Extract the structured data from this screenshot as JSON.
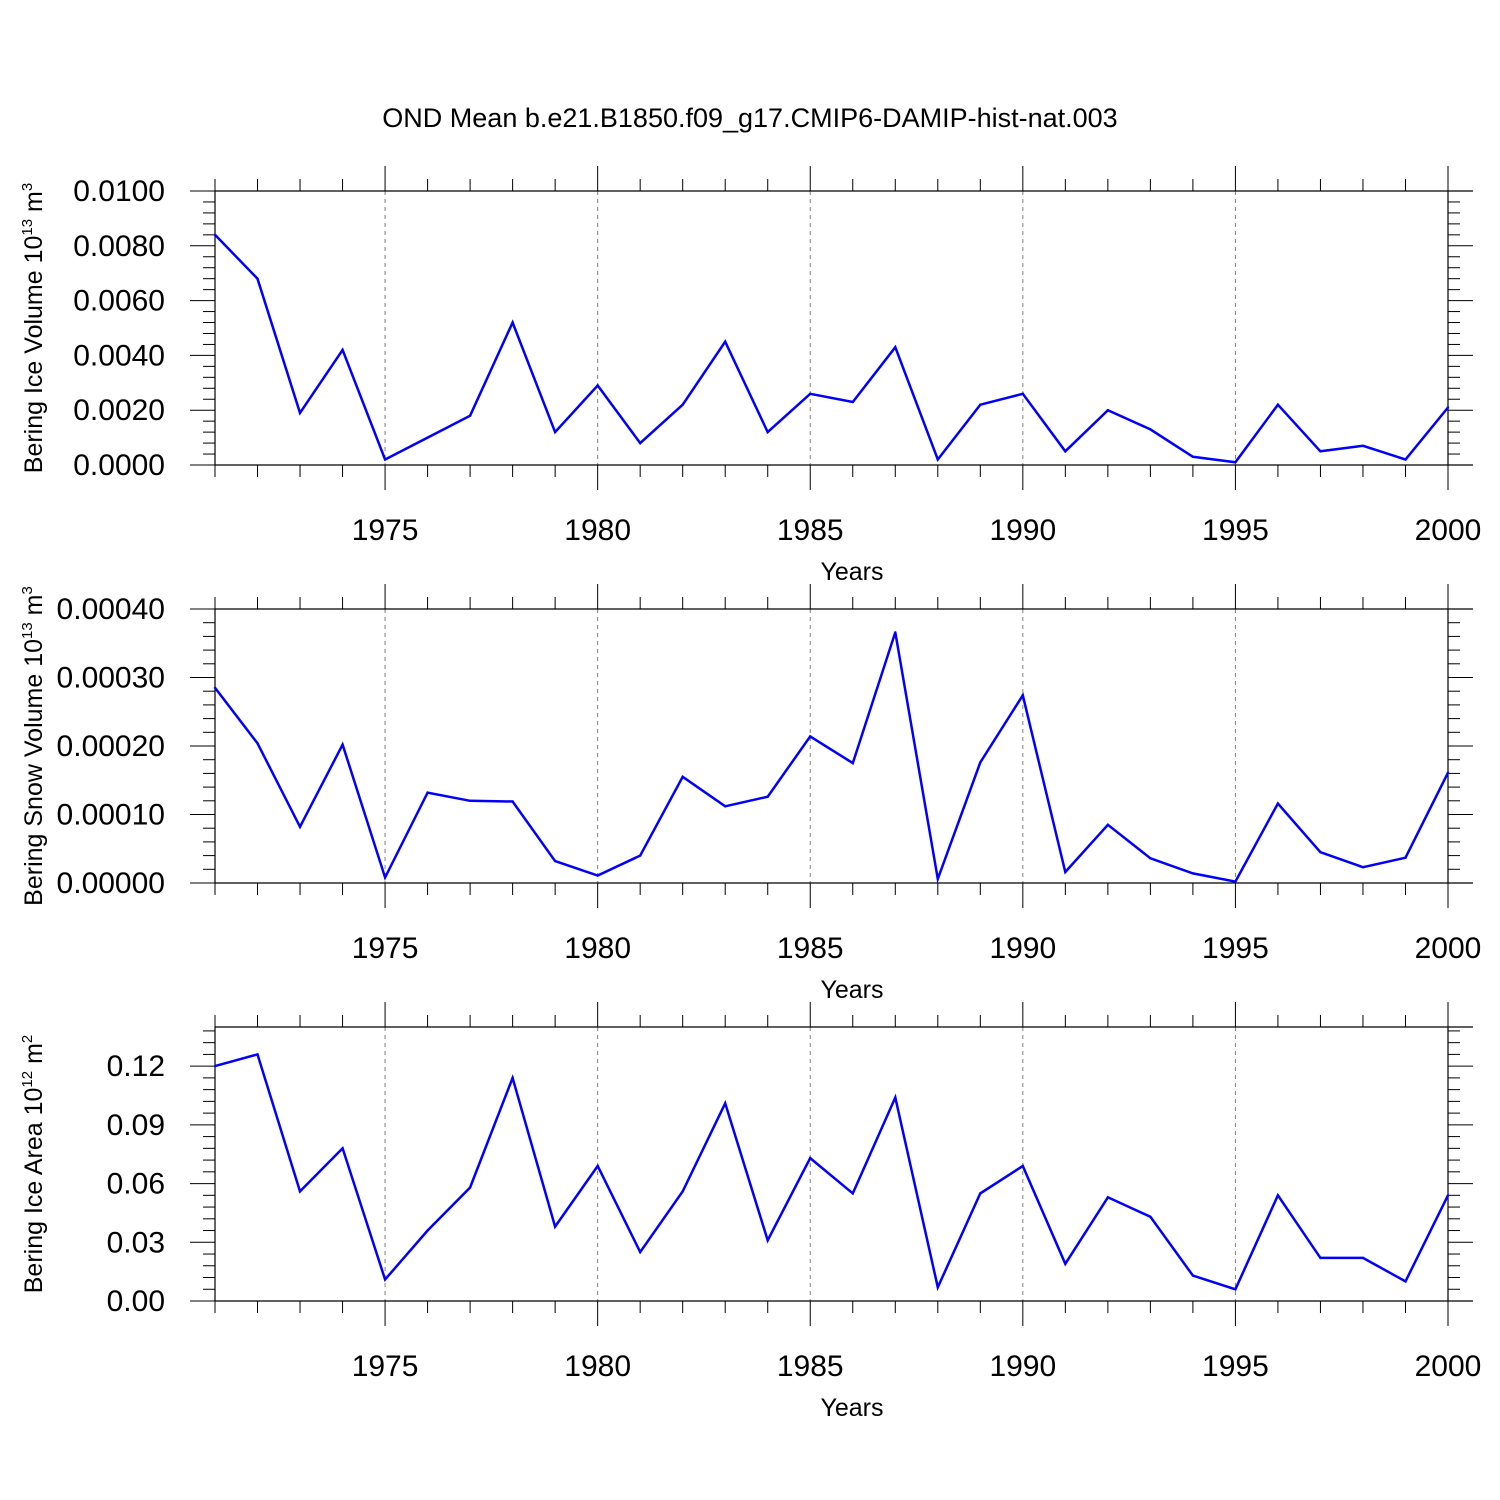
{
  "figure_title": "OND Mean b.e21.B1850.f09_g17.CMIP6-DAMIP-hist-nat.003",
  "colors": {
    "line": "#0000ff",
    "axis": "#000000",
    "grid": "#808080"
  },
  "chart_data": [
    {
      "type": "line",
      "title": "OND Mean b.e21.B1850.f09_g17.CMIP6-DAMIP-hist-nat.003",
      "xlabel": "Years",
      "ylabel": {
        "text": "Bering Ice Volume 10",
        "exp": "13",
        "unit": " m",
        "unit_exp": "3"
      },
      "xlim": [
        1971,
        2000
      ],
      "ylim": [
        0,
        0.01
      ],
      "xticks": [
        1975,
        1980,
        1985,
        1990,
        1995,
        2000
      ],
      "yticks": [
        0,
        0.002,
        0.004,
        0.006,
        0.008,
        0.01
      ],
      "ytick_labels": [
        "0.0000",
        "0.0020",
        "0.0040",
        "0.0060",
        "0.0080",
        "0.0100"
      ],
      "grid": "vertical dashed at major x ticks",
      "series": [
        {
          "name": "Bering Ice Volume",
          "x": [
            1971,
            1972,
            1973,
            1974,
            1975,
            1976,
            1977,
            1978,
            1979,
            1980,
            1981,
            1982,
            1983,
            1984,
            1985,
            1986,
            1987,
            1988,
            1989,
            1990,
            1991,
            1992,
            1993,
            1994,
            1995,
            1996,
            1997,
            1998,
            1999,
            2000
          ],
          "values": [
            0.0084,
            0.0068,
            0.0019,
            0.0042,
            0.0002,
            0.001,
            0.0018,
            0.0052,
            0.0012,
            0.0029,
            0.0008,
            0.0022,
            0.0045,
            0.0012,
            0.0026,
            0.0023,
            0.0043,
            0.0002,
            0.0022,
            0.0026,
            0.0005,
            0.002,
            0.0013,
            0.0003,
            0.0001,
            0.0022,
            0.0005,
            0.0007,
            0.0002,
            0.0021
          ]
        }
      ]
    },
    {
      "type": "line",
      "xlabel": "Years",
      "ylabel": {
        "text": "Bering Snow Volume 10",
        "exp": "13",
        "unit": " m",
        "unit_exp": "3"
      },
      "xlim": [
        1971,
        2000
      ],
      "ylim": [
        0,
        0.0004
      ],
      "xticks": [
        1975,
        1980,
        1985,
        1990,
        1995,
        2000
      ],
      "yticks": [
        0,
        0.0001,
        0.0002,
        0.0003,
        0.0004
      ],
      "ytick_labels": [
        "0.00000",
        "0.00010",
        "0.00020",
        "0.00030",
        "0.00040"
      ],
      "grid": "vertical dashed at major x ticks",
      "series": [
        {
          "name": "Bering Snow Volume",
          "x": [
            1971,
            1972,
            1973,
            1974,
            1975,
            1976,
            1977,
            1978,
            1979,
            1980,
            1981,
            1982,
            1983,
            1984,
            1985,
            1986,
            1987,
            1988,
            1989,
            1990,
            1991,
            1992,
            1993,
            1994,
            1995,
            1996,
            1997,
            1998,
            1999,
            2000
          ],
          "values": [
            0.000285,
            0.000204,
            8.2e-05,
            0.000202,
            8e-06,
            0.000132,
            0.00012,
            0.000119,
            3.2e-05,
            1.1e-05,
            4e-05,
            0.000155,
            0.000112,
            0.000126,
            0.000214,
            0.000175,
            0.000366,
            6e-06,
            0.000176,
            0.000274,
            1.6e-05,
            8.5e-05,
            3.6e-05,
            1.4e-05,
            2e-06,
            0.000116,
            4.5e-05,
            2.3e-05,
            3.7e-05,
            0.000161
          ]
        }
      ]
    },
    {
      "type": "line",
      "xlabel": "Years",
      "ylabel": {
        "text": "Bering Ice Area 10",
        "exp": "12",
        "unit": " m",
        "unit_exp": "2"
      },
      "xlim": [
        1971,
        2000
      ],
      "ylim": [
        0,
        0.14
      ],
      "xticks": [
        1975,
        1980,
        1985,
        1990,
        1995,
        2000
      ],
      "yticks": [
        0,
        0.03,
        0.06,
        0.09,
        0.12
      ],
      "ytick_labels": [
        "0.00",
        "0.03",
        "0.06",
        "0.09",
        "0.12"
      ],
      "grid": "vertical dashed at major x ticks",
      "series": [
        {
          "name": "Bering Ice Area",
          "x": [
            1971,
            1972,
            1973,
            1974,
            1975,
            1976,
            1977,
            1978,
            1979,
            1980,
            1981,
            1982,
            1983,
            1984,
            1985,
            1986,
            1987,
            1988,
            1989,
            1990,
            1991,
            1992,
            1993,
            1994,
            1995,
            1996,
            1997,
            1998,
            1999,
            2000
          ],
          "values": [
            0.12,
            0.126,
            0.056,
            0.078,
            0.011,
            0.036,
            0.058,
            0.114,
            0.038,
            0.069,
            0.025,
            0.056,
            0.101,
            0.031,
            0.073,
            0.055,
            0.104,
            0.007,
            0.055,
            0.069,
            0.019,
            0.053,
            0.043,
            0.013,
            0.006,
            0.054,
            0.022,
            0.022,
            0.01,
            0.054
          ]
        }
      ]
    }
  ]
}
